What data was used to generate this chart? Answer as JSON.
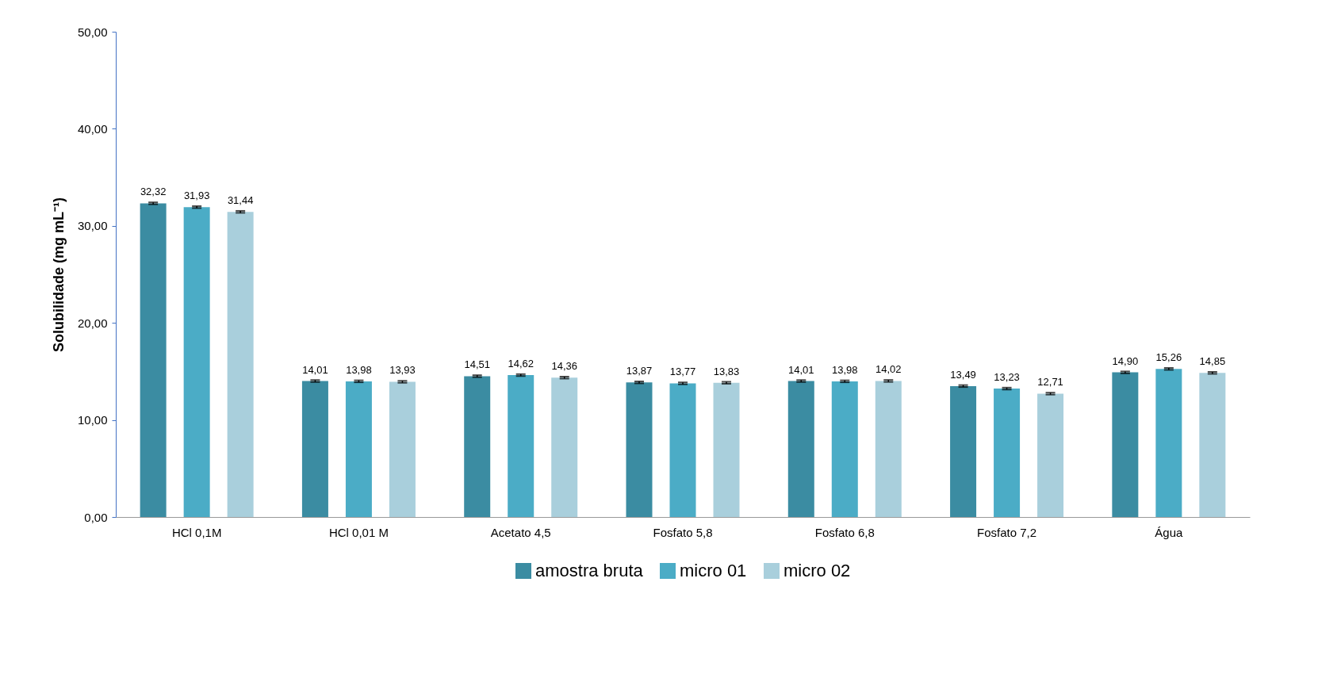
{
  "chart_data": {
    "type": "bar",
    "ylabel": "Solubilidade (mg mL⁻¹)",
    "categories": [
      "HCl 0,1M",
      "HCl 0,01 M",
      "Acetato 4,5",
      "Fosfato 5,8",
      "Fosfato 6,8",
      "Fosfato 7,2",
      "Água"
    ],
    "series": [
      {
        "name": "amostra bruta",
        "color": "#3b8ca2",
        "values": [
          32.32,
          14.01,
          14.51,
          13.87,
          14.01,
          13.49,
          14.9
        ],
        "value_labels": [
          "32,32",
          "14,01",
          "14,51",
          "13,87",
          "14,01",
          "13,49",
          "14,90"
        ],
        "errors": [
          0.1,
          0.1,
          0.1,
          0.1,
          0.1,
          0.1,
          0.1
        ]
      },
      {
        "name": "micro 01",
        "color": "#4bacc6",
        "values": [
          31.93,
          13.98,
          14.62,
          13.77,
          13.98,
          13.23,
          15.26
        ],
        "value_labels": [
          "31,93",
          "13,98",
          "14,62",
          "13,77",
          "13,98",
          "13,23",
          "15,26"
        ],
        "errors": [
          0.1,
          0.1,
          0.1,
          0.1,
          0.1,
          0.1,
          0.1
        ]
      },
      {
        "name": "micro 02",
        "color": "#a9cfdc",
        "values": [
          31.44,
          13.93,
          14.36,
          13.83,
          14.02,
          12.71,
          14.85
        ],
        "value_labels": [
          "31,44",
          "13,93",
          "14,36",
          "13,83",
          "14,02",
          "12,71",
          "14,85"
        ],
        "errors": [
          0.1,
          0.1,
          0.1,
          0.1,
          0.1,
          0.1,
          0.1
        ]
      }
    ],
    "ylim": [
      0,
      50
    ],
    "yticks": [
      {
        "value": 0,
        "label": "0,00"
      },
      {
        "value": 10,
        "label": "10,00"
      },
      {
        "value": 20,
        "label": "20,00"
      },
      {
        "value": 30,
        "label": "30,00"
      },
      {
        "value": 40,
        "label": "40,00"
      },
      {
        "value": 50,
        "label": "50,00"
      }
    ],
    "grid": false,
    "legend": "bottom"
  }
}
